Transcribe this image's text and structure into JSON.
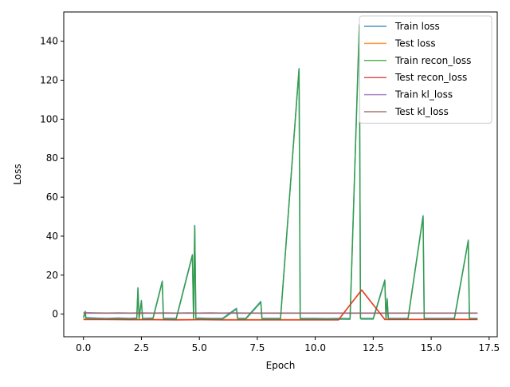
{
  "chart_data": {
    "type": "line",
    "xlabel": "Epoch",
    "ylabel": "Loss",
    "xlim": [
      -0.85,
      17.85
    ],
    "ylim": [
      -11.6,
      155
    ],
    "xticks": [
      0.0,
      2.5,
      5.0,
      7.5,
      10.0,
      12.5,
      15.0,
      17.5
    ],
    "xtick_labels": [
      "0.0",
      "2.5",
      "5.0",
      "7.5",
      "10.0",
      "12.5",
      "15.0",
      "17.5"
    ],
    "yticks": [
      0,
      20,
      40,
      60,
      80,
      100,
      120,
      140
    ],
    "ytick_labels": [
      "0",
      "20",
      "40",
      "60",
      "80",
      "100",
      "120",
      "140"
    ],
    "grid": false,
    "legend_position": "top-right",
    "series": [
      {
        "name": "Train loss",
        "color": "#1f77b4",
        "x": [
          0.0,
          0.08,
          0.1,
          0.5,
          1.0,
          1.5,
          2.0,
          2.3,
          2.35,
          2.4,
          2.5,
          2.55,
          2.6,
          3.0,
          3.4,
          3.45,
          3.5,
          4.0,
          4.7,
          4.75,
          4.8,
          4.85,
          4.9,
          4.95,
          5.5,
          6.0,
          6.6,
          6.65,
          6.7,
          7.0,
          7.65,
          7.7,
          7.75,
          8.5,
          9.3,
          9.35,
          9.4,
          10.0,
          10.5,
          11.0,
          11.5,
          11.9,
          11.95,
          12.0,
          12.5,
          13.0,
          13.05,
          13.1,
          13.15,
          13.2,
          13.5,
          14.0,
          14.65,
          14.7,
          14.75,
          15.5,
          16.0,
          16.6,
          16.65,
          16.7,
          17.0
        ],
        "y": [
          -1.5,
          1.0,
          -1.8,
          -2.0,
          -2.2,
          -2.0,
          -2.2,
          -2.0,
          13.5,
          -2.0,
          7.0,
          -2.0,
          -2.2,
          -2.0,
          17.0,
          -2.0,
          -2.2,
          -2.2,
          30.5,
          -2.0,
          45.5,
          -2.0,
          -2.2,
          -2.0,
          -2.2,
          -2.2,
          3.0,
          -2.0,
          -2.2,
          -2.2,
          6.5,
          -2.0,
          -2.2,
          -2.2,
          126.0,
          -2.0,
          -2.2,
          -2.2,
          -2.3,
          -2.2,
          -2.3,
          148.5,
          -2.0,
          -2.2,
          -2.2,
          17.5,
          -2.0,
          8.0,
          -2.0,
          -2.2,
          -2.2,
          -2.2,
          50.5,
          -2.0,
          -2.2,
          -2.2,
          -2.2,
          38.0,
          -2.0,
          -2.2,
          -2.2
        ]
      },
      {
        "name": "Test loss",
        "color": "#ff7f0e",
        "x": [
          0.0,
          1.0,
          2.0,
          3.0,
          4.0,
          5.0,
          6.0,
          7.0,
          8.0,
          9.0,
          10.0,
          11.0,
          12.0,
          13.0,
          14.0,
          15.0,
          16.0,
          17.0
        ],
        "y": [
          -2.6,
          -2.6,
          -2.7,
          -2.7,
          -2.8,
          -2.7,
          -2.8,
          -2.8,
          -2.8,
          -2.8,
          -2.8,
          -2.8,
          12.5,
          -2.6,
          -2.6,
          -2.6,
          -2.6,
          -2.6
        ]
      },
      {
        "name": "Train recon_loss",
        "color": "#2ca02c",
        "x": [
          0.0,
          0.08,
          0.1,
          0.5,
          1.0,
          1.5,
          2.0,
          2.3,
          2.35,
          2.4,
          2.5,
          2.55,
          2.6,
          3.0,
          3.4,
          3.45,
          3.5,
          4.0,
          4.7,
          4.75,
          4.8,
          4.85,
          4.9,
          4.95,
          5.5,
          6.0,
          6.6,
          6.65,
          6.7,
          7.0,
          7.65,
          7.7,
          7.75,
          8.5,
          9.3,
          9.35,
          9.4,
          10.0,
          10.5,
          11.0,
          11.5,
          11.9,
          11.95,
          12.0,
          12.5,
          13.0,
          13.05,
          13.1,
          13.15,
          13.2,
          13.5,
          14.0,
          14.65,
          14.7,
          14.75,
          15.5,
          16.0,
          16.6,
          16.65,
          16.7,
          17.0
        ],
        "y": [
          -2.0,
          1.5,
          -2.2,
          -2.5,
          -2.6,
          -2.4,
          -2.6,
          -2.4,
          13.0,
          -2.4,
          6.5,
          -2.4,
          -2.6,
          -2.4,
          16.5,
          -2.4,
          -2.6,
          -2.6,
          30.0,
          -2.4,
          45.0,
          -2.4,
          -2.6,
          -2.4,
          -2.6,
          -2.6,
          2.5,
          -2.4,
          -2.6,
          -2.6,
          6.0,
          -2.4,
          -2.6,
          -2.6,
          125.5,
          -2.4,
          -2.6,
          -2.6,
          -2.7,
          -2.6,
          -2.7,
          148.0,
          -2.4,
          -2.6,
          -2.6,
          17.0,
          -2.4,
          7.5,
          -2.4,
          -2.6,
          -2.6,
          -2.6,
          50.0,
          -2.4,
          -2.6,
          -2.6,
          -2.6,
          37.5,
          -2.4,
          -2.6,
          -2.6
        ]
      },
      {
        "name": "Test recon_loss",
        "color": "#d62728",
        "x": [
          0.0,
          1.0,
          2.0,
          3.0,
          4.0,
          5.0,
          6.0,
          7.0,
          8.0,
          9.0,
          10.0,
          11.0,
          12.0,
          13.0,
          14.0,
          15.0,
          16.0,
          17.0
        ],
        "y": [
          -2.8,
          -2.8,
          -2.9,
          -2.9,
          -3.0,
          -2.9,
          -3.0,
          -3.0,
          -3.0,
          -3.0,
          -3.0,
          -3.0,
          12.3,
          -2.8,
          -2.8,
          -2.8,
          -2.8,
          -2.8
        ]
      },
      {
        "name": "Train kl_loss",
        "color": "#9467bd",
        "x": [
          0.0,
          0.5,
          1.0,
          1.5,
          2.0,
          2.5,
          3.0,
          3.5,
          4.0,
          4.5,
          5.0,
          5.5,
          6.0,
          6.5,
          7.0,
          7.5,
          8.0,
          8.5,
          9.0,
          9.5,
          10.0,
          10.5,
          11.0,
          11.5,
          12.0,
          12.5,
          13.0,
          13.5,
          14.0,
          14.5,
          15.0,
          15.5,
          16.0,
          16.5,
          17.0
        ],
        "y": [
          0.9,
          0.7,
          0.6,
          0.7,
          0.6,
          0.7,
          0.6,
          0.7,
          0.6,
          0.7,
          0.6,
          0.7,
          0.6,
          0.7,
          0.6,
          0.6,
          0.6,
          0.6,
          0.6,
          0.6,
          0.6,
          0.6,
          0.6,
          0.6,
          0.6,
          0.6,
          0.6,
          0.6,
          0.6,
          0.6,
          0.6,
          0.6,
          0.6,
          0.6,
          0.6
        ]
      },
      {
        "name": "Test kl_loss",
        "color": "#8c564b",
        "x": [
          0.0,
          1.0,
          2.0,
          3.0,
          4.0,
          5.0,
          6.0,
          7.0,
          8.0,
          9.0,
          10.0,
          11.0,
          12.0,
          13.0,
          14.0,
          15.0,
          16.0,
          17.0
        ],
        "y": [
          0.5,
          0.5,
          0.5,
          0.5,
          0.5,
          0.5,
          0.5,
          0.5,
          0.5,
          0.5,
          0.5,
          0.5,
          0.5,
          0.5,
          0.5,
          0.5,
          0.5,
          0.5
        ]
      }
    ]
  }
}
